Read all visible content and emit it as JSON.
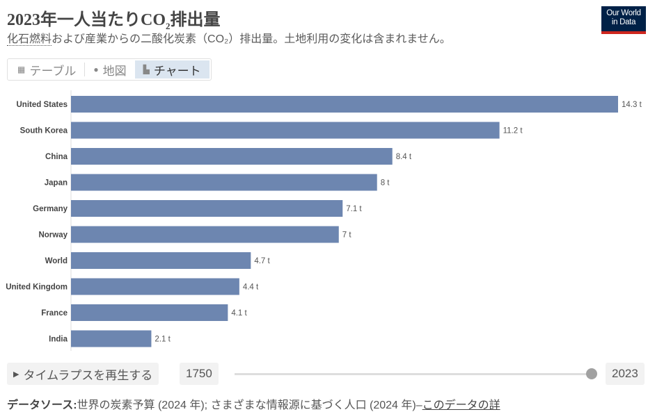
{
  "header": {
    "title_prefix": "2023年一人当たりCO",
    "title_sub": "2",
    "title_suffix": "排出量",
    "subtitle_link": "化石燃料",
    "subtitle_rest": "および産業からの二酸化炭素（CO₂）排出量。土地利用の変化は含まれません。",
    "logo_line1": "Our World",
    "logo_line2": "in Data"
  },
  "tabs": [
    {
      "label": "テーブル",
      "icon": "table-icon"
    },
    {
      "label": "地図",
      "icon": "globe-icon"
    },
    {
      "label": "チャート",
      "icon": "bar-chart-icon",
      "active": true
    }
  ],
  "timeline": {
    "play_label": "タイムラプスを再生する",
    "start_year": "1750",
    "end_year": "2023",
    "position": 1.0
  },
  "footer": {
    "source_label": "データソース:",
    "source_text": "世界の炭素予算 (2024 年); さまざまな情報源に基づく人口 (2024 年)–",
    "link": "このデータの詳"
  },
  "colors": {
    "bar": "#6d86b0",
    "logo_bg": "#002147",
    "logo_accent": "#ce261e"
  },
  "chart_data": {
    "type": "bar",
    "orientation": "horizontal",
    "unit": "t",
    "categories": [
      "United States",
      "South Korea",
      "China",
      "Japan",
      "Germany",
      "Norway",
      "World",
      "United Kingdom",
      "France",
      "India"
    ],
    "values": [
      14.3,
      11.2,
      8.4,
      8,
      7.1,
      7,
      4.7,
      4.4,
      4.1,
      2.1
    ],
    "labels": [
      "14.3 t",
      "11.2 t",
      "8.4 t",
      "8 t",
      "7.1 t",
      "7 t",
      "4.7 t",
      "4.4 t",
      "4.1 t",
      "2.1 t"
    ],
    "xlim": [
      0,
      14.3
    ]
  }
}
